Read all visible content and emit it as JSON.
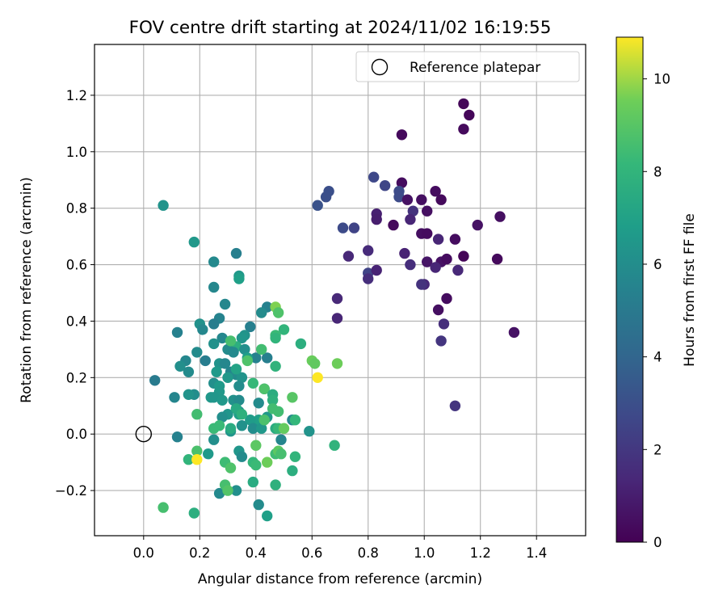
{
  "chart_data": {
    "type": "scatter",
    "title": "FOV centre drift starting at 2024/11/02 16:19:55",
    "xlabel": "Angular distance from reference (arcmin)",
    "ylabel": "Rotation from reference (arcmin)",
    "xlim": [
      -0.175,
      1.575
    ],
    "ylim": [
      -0.36,
      1.38
    ],
    "xticks": [
      "0.0",
      "0.2",
      "0.4",
      "0.6",
      "0.8",
      "1.0",
      "1.2",
      "1.4"
    ],
    "xtick_values": [
      0,
      0.2,
      0.4,
      0.6,
      0.8,
      1.0,
      1.2,
      1.4
    ],
    "yticks": [
      "−0.2",
      "0.0",
      "0.2",
      "0.4",
      "0.6",
      "0.8",
      "1.0",
      "1.2"
    ],
    "ytick_values": [
      -0.2,
      0,
      0.2,
      0.4,
      0.6,
      0.8,
      1.0,
      1.2
    ],
    "grid": true,
    "legend": {
      "position": "top-right",
      "label": "Reference platepar",
      "marker": "open-circle"
    },
    "reference_point": {
      "x": 0.0,
      "y": 0.0
    },
    "colorbar": {
      "label": "Hours from first FF file",
      "colormap": "viridis",
      "range": [
        0,
        10.9
      ],
      "ticks": [
        "0",
        "2",
        "4",
        "6",
        "8",
        "10"
      ],
      "tick_values": [
        0,
        2,
        4,
        6,
        8,
        10
      ]
    },
    "series": [
      {
        "marker": "filled-circle",
        "points": [
          [
            1.14,
            1.17,
            0.2
          ],
          [
            1.16,
            1.13,
            0.2
          ],
          [
            1.14,
            1.08,
            0.3
          ],
          [
            0.92,
            1.06,
            0.3
          ],
          [
            0.82,
            0.91,
            2.7
          ],
          [
            0.86,
            0.88,
            2.6
          ],
          [
            0.92,
            0.89,
            0.4
          ],
          [
            0.91,
            0.86,
            2.8
          ],
          [
            0.91,
            0.84,
            2.8
          ],
          [
            0.94,
            0.83,
            0.6
          ],
          [
            0.99,
            0.83,
            0.5
          ],
          [
            1.04,
            0.86,
            0.4
          ],
          [
            1.06,
            0.83,
            0.3
          ],
          [
            0.66,
            0.86,
            3.0
          ],
          [
            0.65,
            0.84,
            3.0
          ],
          [
            0.62,
            0.81,
            3.1
          ],
          [
            0.96,
            0.79,
            1.8
          ],
          [
            0.95,
            0.76,
            1.3
          ],
          [
            1.01,
            0.79,
            0.5
          ],
          [
            1.27,
            0.77,
            0.5
          ],
          [
            1.19,
            0.74,
            0.6
          ],
          [
            0.83,
            0.78,
            1.1
          ],
          [
            0.83,
            0.76,
            1.0
          ],
          [
            0.89,
            0.74,
            0.3
          ],
          [
            0.71,
            0.73,
            2.8
          ],
          [
            0.75,
            0.73,
            2.5
          ],
          [
            0.99,
            0.71,
            0.5
          ],
          [
            1.01,
            0.71,
            0.4
          ],
          [
            1.05,
            0.69,
            1.3
          ],
          [
            1.11,
            0.69,
            0.4
          ],
          [
            0.8,
            0.65,
            1.5
          ],
          [
            0.73,
            0.63,
            1.4
          ],
          [
            0.93,
            0.64,
            1.2
          ],
          [
            1.01,
            0.61,
            0.7
          ],
          [
            1.06,
            0.61,
            0.6
          ],
          [
            1.08,
            0.62,
            0.4
          ],
          [
            1.14,
            0.63,
            0.1
          ],
          [
            1.26,
            0.62,
            0.3
          ],
          [
            0.95,
            0.6,
            1.6
          ],
          [
            1.04,
            0.59,
            1.3
          ],
          [
            1.12,
            0.58,
            1.4
          ],
          [
            0.8,
            0.57,
            2.5
          ],
          [
            0.83,
            0.58,
            1.2
          ],
          [
            0.8,
            0.55,
            1.6
          ],
          [
            1.0,
            0.53,
            1.4
          ],
          [
            0.99,
            0.53,
            1.8
          ],
          [
            0.69,
            0.48,
            1.4
          ],
          [
            1.08,
            0.48,
            0.4
          ],
          [
            1.05,
            0.44,
            0.5
          ],
          [
            0.69,
            0.41,
            1.3
          ],
          [
            1.07,
            0.39,
            1.6
          ],
          [
            1.32,
            0.36,
            0.6
          ],
          [
            1.06,
            0.33,
            1.9
          ],
          [
            1.11,
            0.1,
            1.9
          ],
          [
            0.07,
            0.81,
            6.3
          ],
          [
            0.18,
            0.68,
            6.5
          ],
          [
            0.33,
            0.64,
            5.3
          ],
          [
            0.25,
            0.61,
            5.8
          ],
          [
            0.34,
            0.56,
            6.5
          ],
          [
            0.34,
            0.55,
            6.9
          ],
          [
            0.25,
            0.52,
            5.7
          ],
          [
            0.29,
            0.46,
            5.7
          ],
          [
            0.44,
            0.45,
            5.4
          ],
          [
            0.42,
            0.43,
            5.9
          ],
          [
            0.27,
            0.41,
            5.5
          ],
          [
            0.38,
            0.38,
            5.3
          ],
          [
            0.25,
            0.39,
            5.2
          ],
          [
            0.2,
            0.39,
            6.2
          ],
          [
            0.21,
            0.37,
            5.7
          ],
          [
            0.12,
            0.36,
            5.4
          ],
          [
            0.36,
            0.35,
            6.3
          ],
          [
            0.28,
            0.34,
            5.7
          ],
          [
            0.35,
            0.34,
            6.4
          ],
          [
            0.33,
            0.31,
            7.7
          ],
          [
            0.25,
            0.32,
            6.2
          ],
          [
            0.3,
            0.3,
            5.9
          ],
          [
            0.32,
            0.29,
            5.8
          ],
          [
            0.36,
            0.3,
            6.1
          ],
          [
            0.19,
            0.29,
            5.9
          ],
          [
            0.22,
            0.26,
            5.2
          ],
          [
            0.15,
            0.26,
            5.7
          ],
          [
            0.13,
            0.24,
            6.1
          ],
          [
            0.27,
            0.25,
            6.3
          ],
          [
            0.29,
            0.25,
            5.7
          ],
          [
            0.4,
            0.27,
            5.4
          ],
          [
            0.44,
            0.27,
            5.3
          ],
          [
            0.37,
            0.27,
            6.8
          ],
          [
            0.31,
            0.22,
            5.6
          ],
          [
            0.33,
            0.21,
            5.9
          ],
          [
            0.35,
            0.2,
            6.3
          ],
          [
            0.3,
            0.2,
            6.5
          ],
          [
            0.26,
            0.22,
            6.6
          ],
          [
            0.16,
            0.22,
            5.9
          ],
          [
            0.04,
            0.19,
            5.1
          ],
          [
            0.25,
            0.18,
            6.1
          ],
          [
            0.34,
            0.17,
            6.0
          ],
          [
            0.27,
            0.17,
            6.6
          ],
          [
            0.43,
            0.16,
            5.4
          ],
          [
            0.27,
            0.15,
            6.5
          ],
          [
            0.18,
            0.14,
            6.0
          ],
          [
            0.16,
            0.14,
            6.3
          ],
          [
            0.24,
            0.13,
            6.5
          ],
          [
            0.11,
            0.13,
            5.6
          ],
          [
            0.25,
            0.13,
            6.4
          ],
          [
            0.28,
            0.12,
            6.5
          ],
          [
            0.32,
            0.12,
            6.2
          ],
          [
            0.34,
            0.12,
            5.9
          ],
          [
            0.41,
            0.11,
            5.9
          ],
          [
            0.33,
            0.09,
            5.8
          ],
          [
            0.34,
            0.08,
            6.1
          ],
          [
            0.34,
            0.07,
            6.8
          ],
          [
            0.3,
            0.07,
            6.4
          ],
          [
            0.28,
            0.06,
            6.1
          ],
          [
            0.44,
            0.06,
            6.5
          ],
          [
            0.41,
            0.05,
            6.9
          ],
          [
            0.38,
            0.05,
            6.7
          ],
          [
            0.53,
            0.05,
            5.7
          ],
          [
            0.35,
            0.03,
            6.2
          ],
          [
            0.31,
            0.01,
            6.4
          ],
          [
            0.39,
            0.02,
            6.0
          ],
          [
            0.42,
            0.02,
            6.5
          ],
          [
            0.59,
            0.01,
            6.3
          ],
          [
            0.12,
            -0.01,
            5.4
          ],
          [
            0.49,
            -0.02,
            5.6
          ],
          [
            0.25,
            -0.02,
            6.1
          ],
          [
            0.23,
            -0.07,
            6.6
          ],
          [
            0.34,
            -0.06,
            6.4
          ],
          [
            0.35,
            -0.08,
            5.9
          ],
          [
            0.33,
            -0.2,
            6.1
          ],
          [
            0.27,
            -0.21,
            5.8
          ],
          [
            0.41,
            -0.25,
            5.9
          ],
          [
            0.44,
            -0.29,
            6.9
          ],
          [
            0.47,
            0.45,
            9.7
          ],
          [
            0.48,
            0.43,
            8.8
          ],
          [
            0.5,
            0.37,
            8.0
          ],
          [
            0.47,
            0.35,
            8.3
          ],
          [
            0.47,
            0.34,
            8.0
          ],
          [
            0.56,
            0.32,
            7.7
          ],
          [
            0.31,
            0.33,
            8.6
          ],
          [
            0.42,
            0.3,
            8.5
          ],
          [
            0.37,
            0.26,
            8.8
          ],
          [
            0.6,
            0.26,
            9.4
          ],
          [
            0.61,
            0.25,
            9.2
          ],
          [
            0.69,
            0.25,
            9.5
          ],
          [
            0.47,
            0.24,
            7.9
          ],
          [
            0.33,
            0.23,
            7.1
          ],
          [
            0.62,
            0.2,
            10.9
          ],
          [
            0.39,
            0.18,
            8.2
          ],
          [
            0.43,
            0.16,
            8.8
          ],
          [
            0.46,
            0.14,
            7.6
          ],
          [
            0.53,
            0.13,
            9.0
          ],
          [
            0.46,
            0.12,
            7.8
          ],
          [
            0.46,
            0.09,
            8.5
          ],
          [
            0.48,
            0.08,
            8.5
          ],
          [
            0.19,
            0.07,
            8.5
          ],
          [
            0.33,
            0.09,
            7.4
          ],
          [
            0.35,
            0.07,
            7.8
          ],
          [
            0.54,
            0.05,
            8.1
          ],
          [
            0.43,
            0.05,
            8.7
          ],
          [
            0.47,
            0.02,
            7.5
          ],
          [
            0.48,
            0.02,
            8.2
          ],
          [
            0.25,
            0.02,
            8.3
          ],
          [
            0.27,
            0.03,
            8.3
          ],
          [
            0.31,
            0.02,
            7.5
          ],
          [
            0.5,
            0.02,
            9.3
          ],
          [
            0.68,
            -0.04,
            7.9
          ],
          [
            0.4,
            -0.04,
            9.1
          ],
          [
            0.19,
            -0.06,
            8.7
          ],
          [
            0.47,
            -0.07,
            8.4
          ],
          [
            0.48,
            -0.06,
            9.1
          ],
          [
            0.49,
            -0.07,
            8.6
          ],
          [
            0.54,
            -0.08,
            8.0
          ],
          [
            0.16,
            -0.09,
            8.0
          ],
          [
            0.19,
            -0.09,
            10.9
          ],
          [
            0.29,
            -0.1,
            8.4
          ],
          [
            0.39,
            -0.1,
            8.1
          ],
          [
            0.4,
            -0.11,
            8.3
          ],
          [
            0.44,
            -0.1,
            9.5
          ],
          [
            0.31,
            -0.12,
            8.8
          ],
          [
            0.53,
            -0.13,
            7.7
          ],
          [
            0.39,
            -0.17,
            7.5
          ],
          [
            0.29,
            -0.18,
            8.6
          ],
          [
            0.3,
            -0.2,
            8.9
          ],
          [
            0.47,
            -0.18,
            7.8
          ],
          [
            0.07,
            -0.26,
            8.6
          ],
          [
            0.18,
            -0.28,
            7.7
          ]
        ]
      }
    ]
  }
}
